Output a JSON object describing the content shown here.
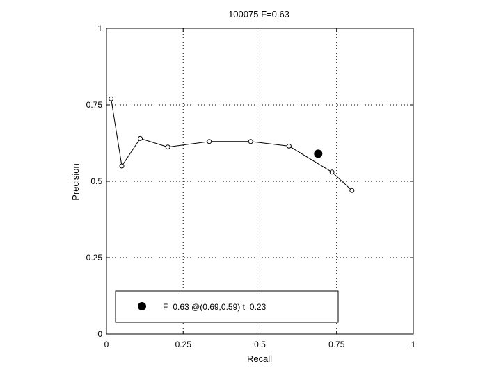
{
  "chart_data": {
    "type": "line",
    "title": "100075 F=0.63",
    "xlabel": "Recall",
    "ylabel": "Precision",
    "xlim": [
      0,
      1
    ],
    "ylim": [
      0,
      1
    ],
    "xticks": [
      "0",
      "0.25",
      "0.5",
      "0.75",
      "1"
    ],
    "yticks": [
      "0",
      "0.25",
      "0.5",
      "0.75",
      "1"
    ],
    "grid": true,
    "legend_position": "bottom-left",
    "series": [
      {
        "x": [
          0.015,
          0.05,
          0.11,
          0.2,
          0.335,
          0.47,
          0.595,
          0.735,
          0.8
        ],
        "y": [
          0.77,
          0.55,
          0.64,
          0.612,
          0.63,
          0.63,
          0.615,
          0.53,
          0.47
        ],
        "marker": "open-circle",
        "color": "#000000"
      }
    ],
    "highlight": {
      "x": 0.69,
      "y": 0.59,
      "marker": "filled-circle"
    },
    "legend": [
      "F=0.63 @(0.69,0.59) t=0.23"
    ]
  }
}
